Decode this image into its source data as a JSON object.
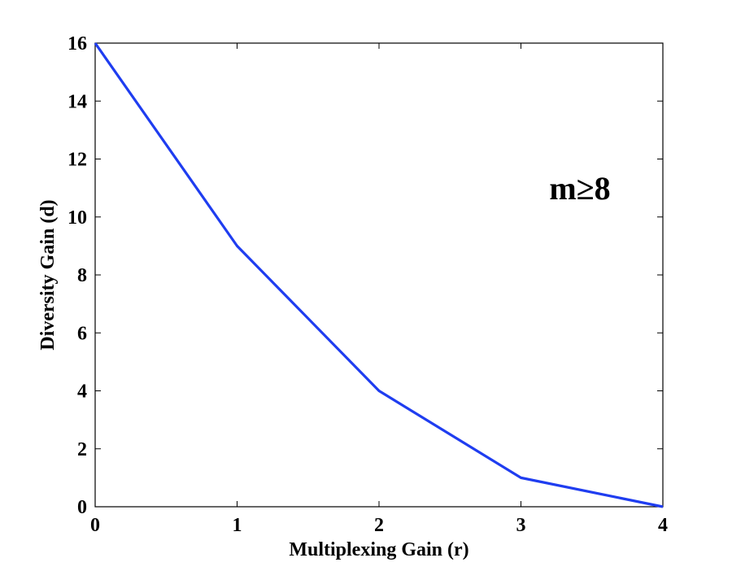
{
  "chart_data": {
    "type": "line",
    "title": "",
    "xlabel": "Multiplexing Gain (r)",
    "ylabel": "Diversity Gain (d)",
    "xlim": [
      0,
      4
    ],
    "ylim": [
      0,
      16
    ],
    "xticks": [
      0,
      1,
      2,
      3,
      4
    ],
    "yticks": [
      0,
      2,
      4,
      6,
      8,
      10,
      12,
      14,
      16
    ],
    "grid": false,
    "series": [
      {
        "color": "#1f3df0",
        "x": [
          0,
          1,
          2,
          3,
          4
        ],
        "y": [
          16,
          9,
          4,
          1,
          0
        ]
      }
    ],
    "annotations": [
      {
        "text": "m≥8",
        "x": 3.2,
        "y": 11
      }
    ]
  }
}
